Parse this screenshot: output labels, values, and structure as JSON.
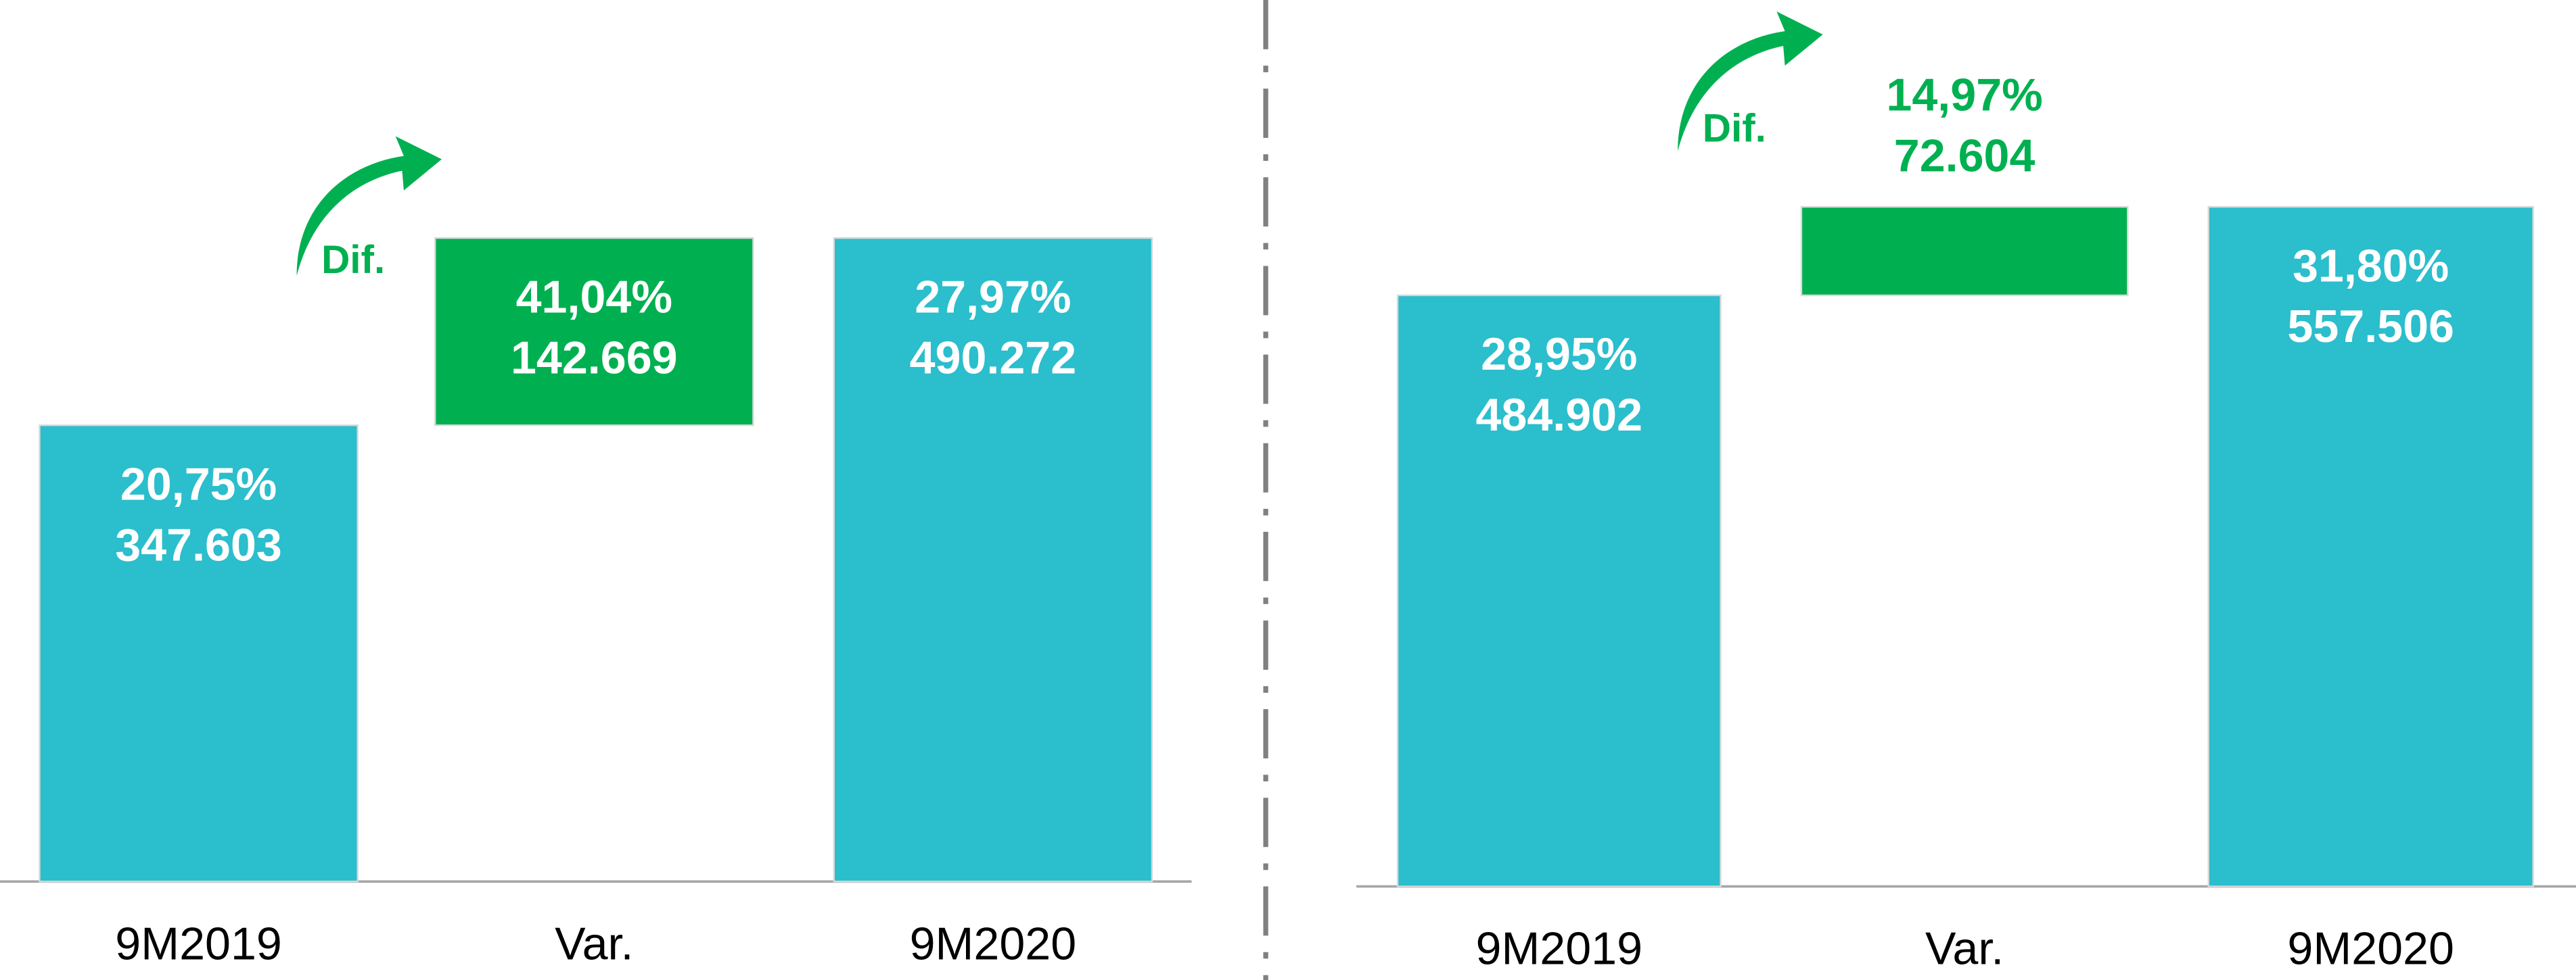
{
  "chart_data": [
    {
      "type": "waterfall",
      "annotation": "Dif.",
      "categories": [
        "9M2019",
        "Var.",
        "9M2020"
      ],
      "values": [
        347603,
        142669,
        490272
      ],
      "value_labels": [
        "347.603",
        "142.669",
        "490.272"
      ],
      "percent_labels": [
        "20,75%",
        "41,04%",
        "27,97%"
      ],
      "colors": [
        "#2bbecc",
        "#00b050",
        "#2bbecc"
      ]
    },
    {
      "type": "waterfall",
      "annotation": "Dif.",
      "categories": [
        "9M2019",
        "Var.",
        "9M2020"
      ],
      "values": [
        484902,
        72604,
        557506
      ],
      "value_labels": [
        "484.902",
        "72.604",
        "557.506"
      ],
      "percent_labels": [
        "28,95%",
        "14,97%",
        "31,80%"
      ],
      "colors": [
        "#2bbecc",
        "#00b050",
        "#2bbecc"
      ]
    }
  ]
}
